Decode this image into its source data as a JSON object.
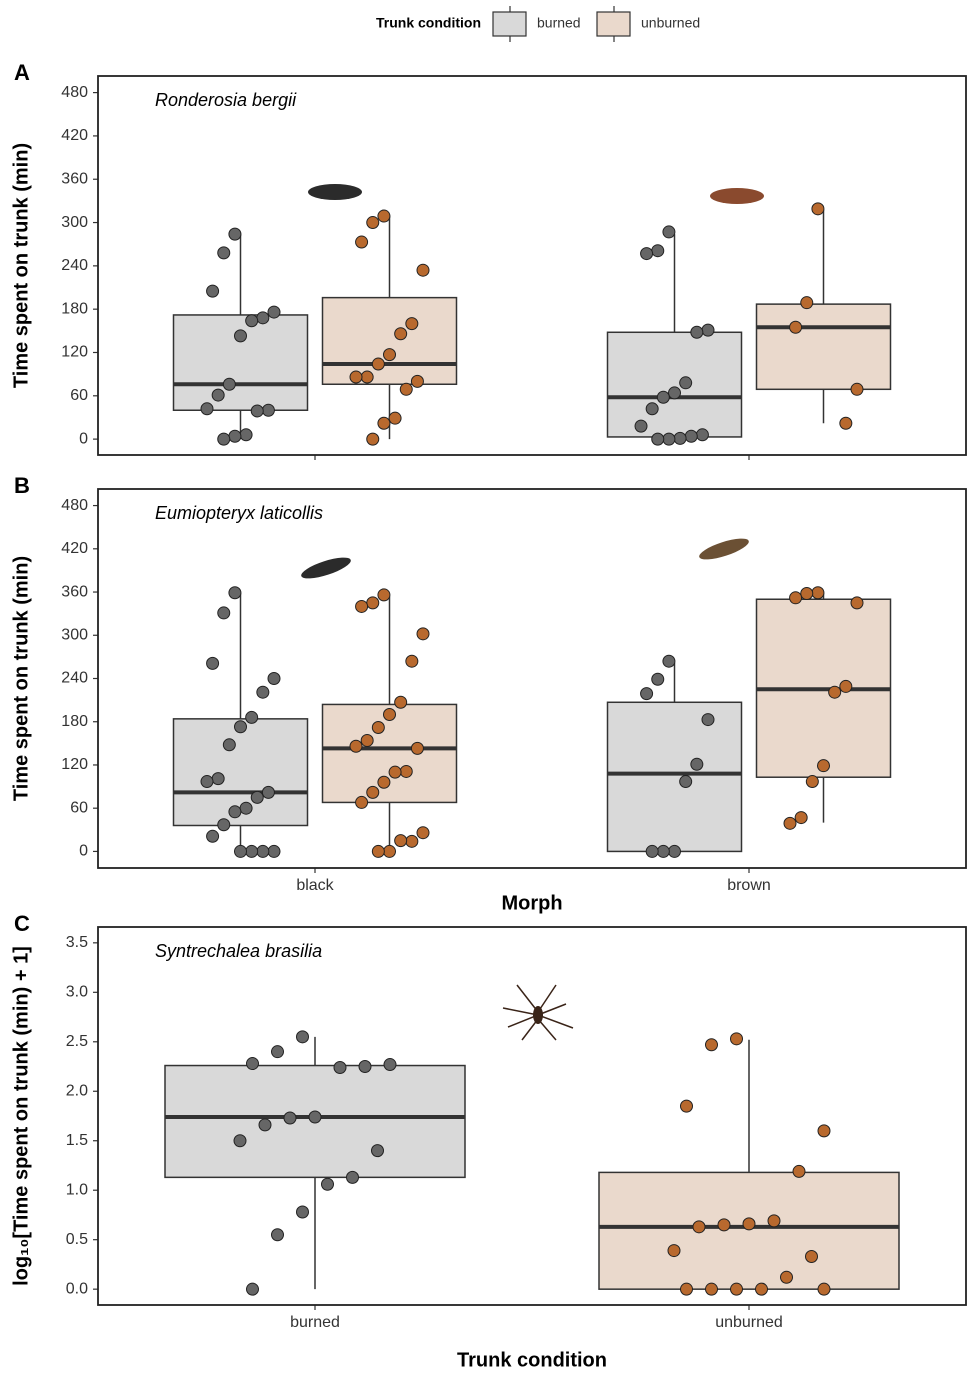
{
  "chart_data": [
    {
      "type": "box",
      "panel_label": "A",
      "title": "Ronderosia bergii",
      "y_label": "Time spent on trunk (min)",
      "legend": {
        "title": "Trunk condition",
        "position": "top"
      },
      "categories": [
        null,
        null
      ],
      "ylim": [
        -22,
        503
      ],
      "yticks": [
        0,
        60,
        120,
        180,
        240,
        300,
        360,
        420,
        480
      ],
      "series": [
        {
          "name": "burned",
          "color": "#d9d9d9",
          "point_color": "#666666",
          "boxes": [
            {
              "min": 0,
              "q1": 40,
              "median": 76,
              "q3": 172,
              "max": 284,
              "points": [
                284,
                258,
                205,
                176,
                168,
                164,
                143,
                76,
                61,
                42,
                40,
                39,
                6,
                4,
                0
              ]
            },
            {
              "min": 0,
              "q1": 3,
              "median": 58,
              "q3": 148,
              "max": 284,
              "points": [
                287,
                261,
                257,
                151,
                148,
                78,
                64,
                58,
                42,
                18,
                6,
                4,
                1,
                0,
                0
              ]
            }
          ]
        },
        {
          "name": "unburned",
          "color": "#ead9cc",
          "point_color": "#b8692e",
          "boxes": [
            {
              "min": 0,
              "q1": 76,
              "median": 104,
              "q3": 196,
              "max": 309,
              "points": [
                309,
                300,
                273,
                234,
                160,
                146,
                117,
                104,
                86,
                86,
                80,
                69,
                29,
                22,
                0
              ]
            },
            {
              "min": 22,
              "q1": 69,
              "median": 155,
              "q3": 187,
              "max": 318,
              "points": [
                319,
                189,
                155,
                69,
                22
              ]
            }
          ]
        }
      ]
    },
    {
      "type": "box",
      "panel_label": "B",
      "title": "Eumiopteryx laticollis",
      "y_label": "Time spent on trunk (min)",
      "x_label": "Morph",
      "categories": [
        "black",
        "brown"
      ],
      "ylim": [
        -23,
        503
      ],
      "yticks": [
        0,
        60,
        120,
        180,
        240,
        300,
        360,
        420,
        480
      ],
      "series": [
        {
          "name": "burned",
          "color": "#d9d9d9",
          "point_color": "#666666",
          "boxes": [
            {
              "min": 0,
              "q1": 36,
              "median": 82,
              "q3": 184,
              "max": 359,
              "points": [
                359,
                331,
                261,
                240,
                221,
                186,
                173,
                148,
                101,
                97,
                82,
                75,
                60,
                55,
                37,
                21,
                0,
                0,
                0,
                0
              ]
            },
            {
              "min": 0,
              "q1": 0,
              "median": 108,
              "q3": 207,
              "max": 262,
              "points": [
                264,
                239,
                219,
                183,
                121,
                97,
                0,
                0,
                0
              ]
            }
          ]
        },
        {
          "name": "unburned",
          "color": "#ead9cc",
          "point_color": "#b8692e",
          "boxes": [
            {
              "min": 0,
              "q1": 68,
              "median": 143,
              "q3": 204,
              "max": 354,
              "points": [
                356,
                345,
                340,
                302,
                264,
                207,
                190,
                172,
                154,
                146,
                143,
                111,
                110,
                96,
                82,
                68,
                26,
                14,
                15,
                0,
                0
              ]
            },
            {
              "min": 40,
              "q1": 103,
              "median": 225,
              "q3": 350,
              "max": 359,
              "points": [
                359,
                358,
                352,
                345,
                229,
                221,
                119,
                97,
                47,
                39
              ]
            }
          ]
        }
      ]
    },
    {
      "type": "box",
      "panel_label": "C",
      "title": "Syntrechalea brasilia",
      "y_label": "log₁₀[Time spent on trunk (min) + 1]",
      "x_label": "Trunk condition",
      "categories": [
        "burned",
        "unburned"
      ],
      "ylim": [
        -0.16,
        3.66
      ],
      "yticks": [
        {
          "value": 0,
          "label": "0.0"
        },
        0.5,
        {
          "value": 1,
          "label": "1.0"
        },
        1.5,
        {
          "value": 2,
          "label": "2.0"
        },
        2.5,
        {
          "value": 3,
          "label": "3.0"
        },
        3.5
      ],
      "colors": [
        "#d9d9d9",
        "#ead9cc"
      ],
      "point_colors": [
        "#666666",
        "#b8692e"
      ],
      "boxes": [
        {
          "min": 0,
          "q1": 1.13,
          "median": 1.74,
          "q3": 2.26,
          "max": 2.55,
          "points": [
            2.55,
            2.4,
            2.28,
            2.27,
            2.25,
            2.24,
            1.74,
            1.73,
            1.66,
            1.5,
            1.4,
            1.13,
            1.06,
            0.78,
            0.55,
            0
          ]
        },
        {
          "min": 0,
          "q1": 0,
          "median": 0.63,
          "q3": 1.18,
          "max": 2.52,
          "points": [
            2.53,
            2.47,
            1.85,
            1.6,
            1.19,
            0.69,
            0.66,
            0.65,
            0.63,
            0.39,
            0.33,
            0.12,
            0,
            0,
            0,
            0,
            0
          ]
        }
      ]
    }
  ]
}
